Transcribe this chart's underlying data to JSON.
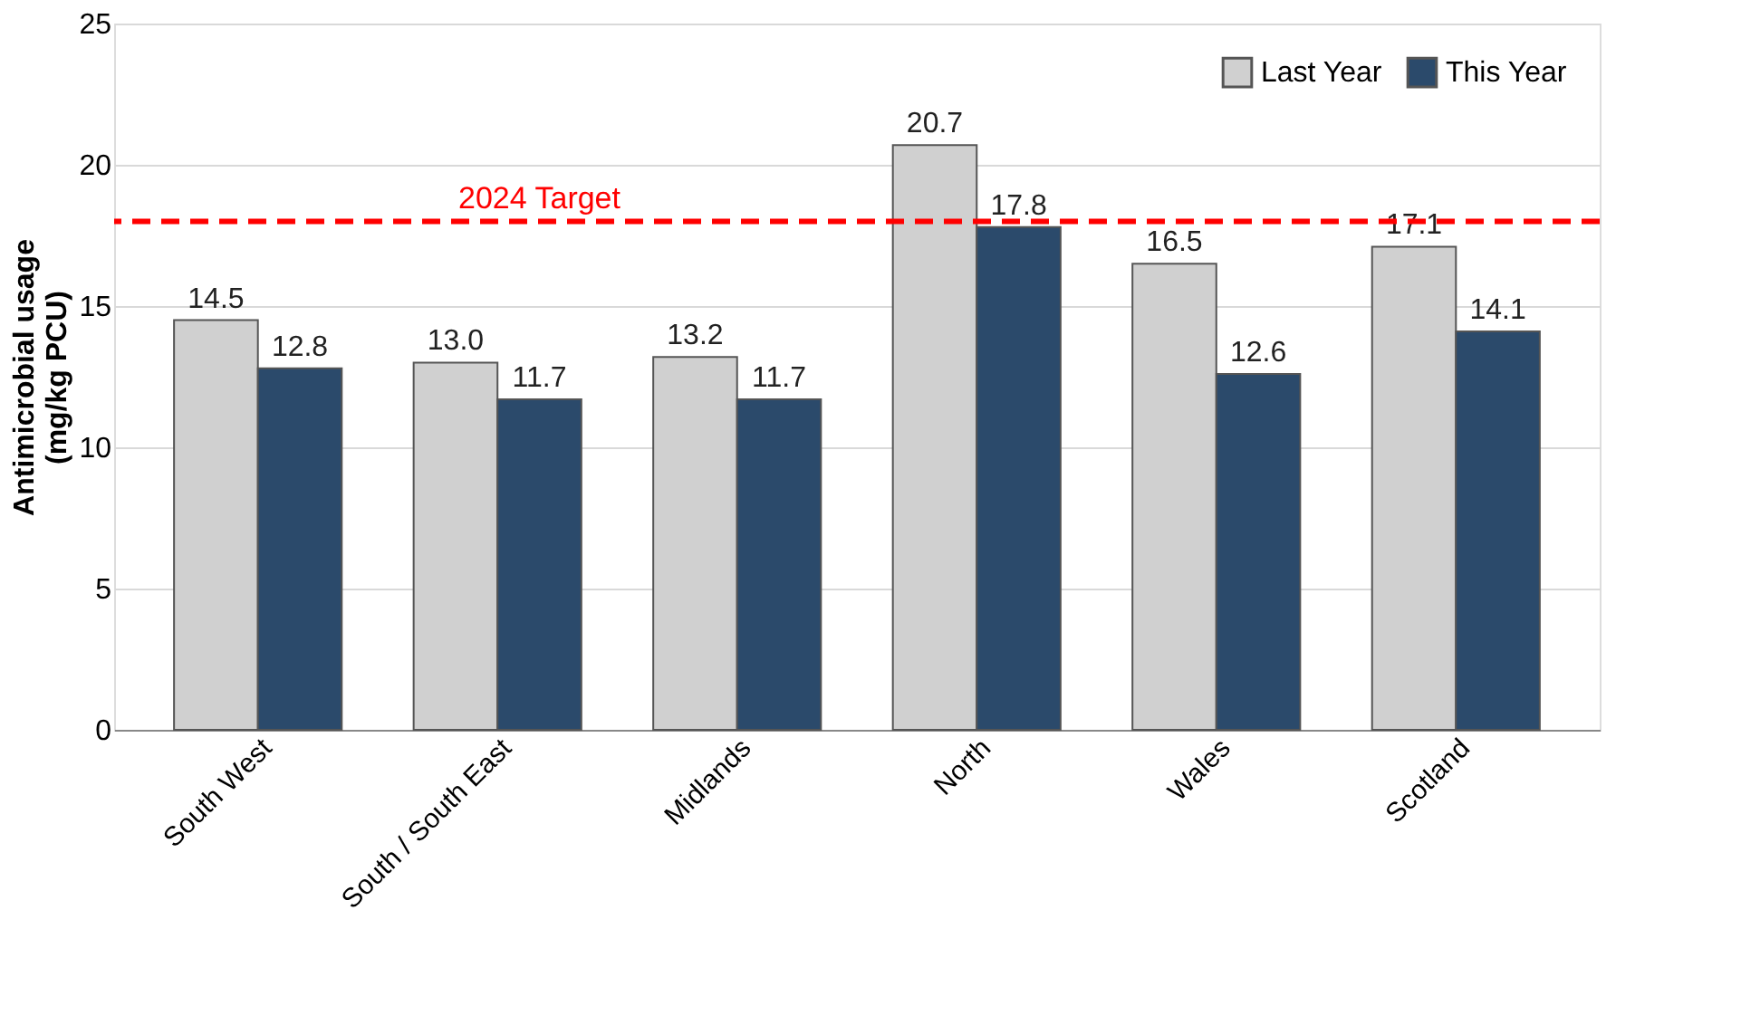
{
  "chart_data": {
    "type": "bar",
    "ylabel": "Antimicrobial usage\n(mg/kg PCU)",
    "categories": [
      "South West",
      "South / South East",
      "Midlands",
      "North",
      "Wales",
      "Scotland"
    ],
    "series": [
      {
        "name": "Last Year",
        "color": "#d0d0d0",
        "values": [
          14.5,
          13.0,
          13.2,
          20.7,
          16.5,
          17.1
        ],
        "value_labels": [
          "14.5",
          "13.0",
          "13.2",
          "20.7",
          "16.5",
          "17.1"
        ]
      },
      {
        "name": "This Year",
        "color": "#2b4a6b",
        "values": [
          12.8,
          11.7,
          11.7,
          17.8,
          12.6,
          14.1
        ],
        "value_labels": [
          "12.8",
          "11.7",
          "11.7",
          "17.8",
          "12.6",
          "14.1"
        ]
      }
    ],
    "ylim": [
      0,
      25
    ],
    "yticks": [
      0,
      5,
      10,
      15,
      20,
      25
    ],
    "ref_lines": [
      {
        "axis": "y",
        "value": 18,
        "label": "2024 Target",
        "color": "#ff0000",
        "line_style": "dashed"
      }
    ],
    "grid": "y",
    "legend": "top right"
  }
}
